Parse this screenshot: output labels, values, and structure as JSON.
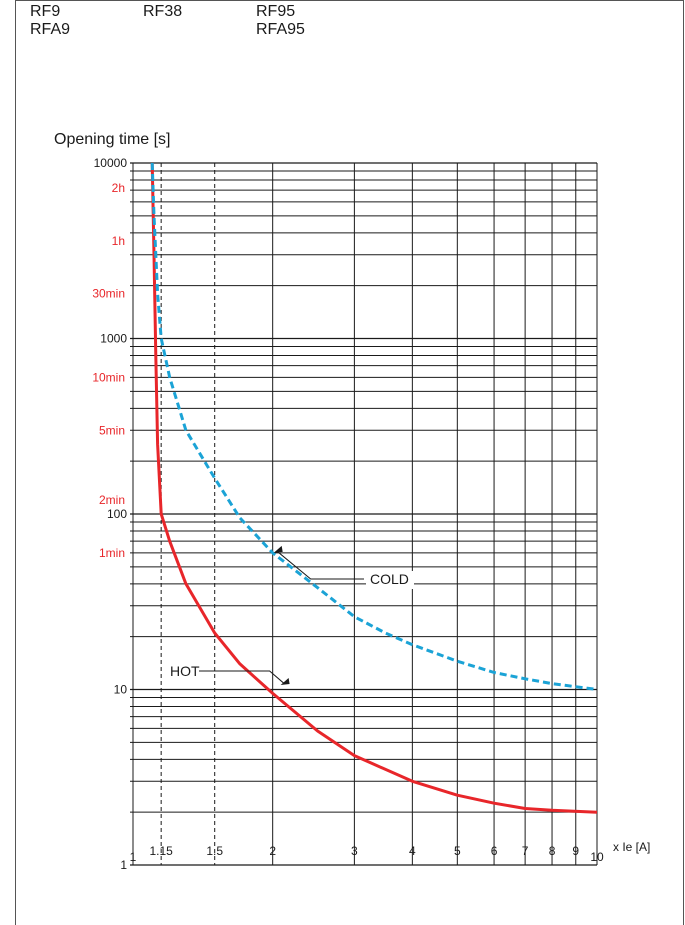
{
  "models": [
    {
      "lines": [
        "RF9",
        "RFA9"
      ]
    },
    {
      "lines": [
        "RF38"
      ]
    },
    {
      "lines": [
        "RF95",
        "RFA95"
      ]
    }
  ],
  "colors": {
    "hot": "#e8262a",
    "cold": "#1ba3d6",
    "time_label": "#e8262a",
    "grid": "#1a1a1a",
    "text": "#1a1a1a"
  },
  "chart_data": {
    "type": "line",
    "title": "",
    "xlabel": "x Ie [A]",
    "ylabel": "Opening time [s]",
    "xscale": "log",
    "yscale": "log",
    "xlim": [
      1,
      10
    ],
    "ylim": [
      1,
      10000
    ],
    "x_ticks": [
      {
        "value": 1,
        "label": "1"
      },
      {
        "value": 1.15,
        "label": "1.15"
      },
      {
        "value": 1.5,
        "label": "1.5"
      },
      {
        "value": 2,
        "label": "2"
      },
      {
        "value": 3,
        "label": "3"
      },
      {
        "value": 4,
        "label": "4"
      },
      {
        "value": 5,
        "label": "5"
      },
      {
        "value": 6,
        "label": "6"
      },
      {
        "value": 7,
        "label": "7"
      },
      {
        "value": 8,
        "label": "8"
      },
      {
        "value": 9,
        "label": "9"
      },
      {
        "value": 10,
        "label": "10"
      }
    ],
    "x_dashed_refs": [
      1.15,
      1.5
    ],
    "y_ticks": [
      {
        "value": 1,
        "label": "1"
      },
      {
        "value": 10,
        "label": "10"
      },
      {
        "value": 100,
        "label": "100"
      },
      {
        "value": 1000,
        "label": "1000"
      },
      {
        "value": 10000,
        "label": "10000"
      }
    ],
    "y_time_labels": [
      {
        "value": 7200,
        "label": "2h"
      },
      {
        "value": 3600,
        "label": "1h"
      },
      {
        "value": 1800,
        "label": "30min"
      },
      {
        "value": 600,
        "label": "10min"
      },
      {
        "value": 300,
        "label": "5min"
      },
      {
        "value": 120,
        "label": "2min"
      },
      {
        "value": 60,
        "label": "1min"
      }
    ],
    "grid": true,
    "series": [
      {
        "name": "HOT",
        "style": "solid",
        "points": [
          [
            1.1,
            10000
          ],
          [
            1.11,
            3000
          ],
          [
            1.12,
            800
          ],
          [
            1.13,
            250
          ],
          [
            1.15,
            100
          ],
          [
            1.2,
            70
          ],
          [
            1.3,
            40
          ],
          [
            1.5,
            21
          ],
          [
            1.7,
            14
          ],
          [
            2,
            9.5
          ],
          [
            2.5,
            5.8
          ],
          [
            3,
            4.2
          ],
          [
            4,
            3.0
          ],
          [
            5,
            2.5
          ],
          [
            6,
            2.25
          ],
          [
            7,
            2.1
          ],
          [
            8,
            2.05
          ],
          [
            10,
            2.0
          ]
        ]
      },
      {
        "name": "COLD",
        "style": "dashed",
        "points": [
          [
            1.1,
            10000
          ],
          [
            1.11,
            5000
          ],
          [
            1.13,
            1800
          ],
          [
            1.15,
            1000
          ],
          [
            1.2,
            600
          ],
          [
            1.3,
            300
          ],
          [
            1.5,
            160
          ],
          [
            1.7,
            95
          ],
          [
            2,
            60
          ],
          [
            2.5,
            38
          ],
          [
            3,
            26
          ],
          [
            3.5,
            21
          ],
          [
            4,
            18
          ],
          [
            5,
            14.5
          ],
          [
            6,
            12.5
          ],
          [
            7,
            11.5
          ],
          [
            8,
            10.8
          ],
          [
            10,
            10
          ]
        ]
      }
    ],
    "annotations": [
      {
        "label": "COLD",
        "target": [
          2,
          60
        ]
      },
      {
        "label": "HOT",
        "target": [
          2.07,
          10.6
        ]
      }
    ]
  }
}
